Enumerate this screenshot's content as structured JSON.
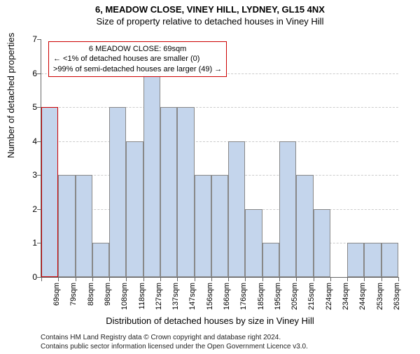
{
  "title": "6, MEADOW CLOSE, VINEY HILL, LYDNEY, GL15 4NX",
  "subtitle": "Size of property relative to detached houses in Viney Hill",
  "chart": {
    "type": "histogram",
    "xlabel": "Distribution of detached houses by size in Viney Hill",
    "ylabel": "Number of detached properties",
    "ylim": [
      0,
      7
    ],
    "ytick_step": 1,
    "bar_color": "#c4d5ec",
    "bar_border_color": "#888888",
    "grid_color": "#cccccc",
    "background_color": "#ffffff",
    "highlight_index": 0,
    "highlight_border_color": "#cc0000",
    "title_fontsize": 13,
    "label_fontsize": 13,
    "tick_fontsize": 11,
    "categories": [
      "69sqm",
      "79sqm",
      "88sqm",
      "98sqm",
      "108sqm",
      "118sqm",
      "127sqm",
      "137sqm",
      "147sqm",
      "156sqm",
      "166sqm",
      "176sqm",
      "185sqm",
      "195sqm",
      "205sqm",
      "215sqm",
      "224sqm",
      "234sqm",
      "244sqm",
      "253sqm",
      "263sqm"
    ],
    "values": [
      5,
      3,
      3,
      1,
      5,
      4,
      6,
      5,
      5,
      3,
      3,
      4,
      2,
      1,
      4,
      3,
      2,
      0,
      1,
      1,
      1
    ]
  },
  "annotation": {
    "title": "6 MEADOW CLOSE: 69sqm",
    "line1": "← <1% of detached houses are smaller (0)",
    "line2": ">99% of semi-detached houses are larger (49) →"
  },
  "attribution": {
    "line1": "Contains HM Land Registry data © Crown copyright and database right 2024.",
    "line2": "Contains public sector information licensed under the Open Government Licence v3.0."
  }
}
